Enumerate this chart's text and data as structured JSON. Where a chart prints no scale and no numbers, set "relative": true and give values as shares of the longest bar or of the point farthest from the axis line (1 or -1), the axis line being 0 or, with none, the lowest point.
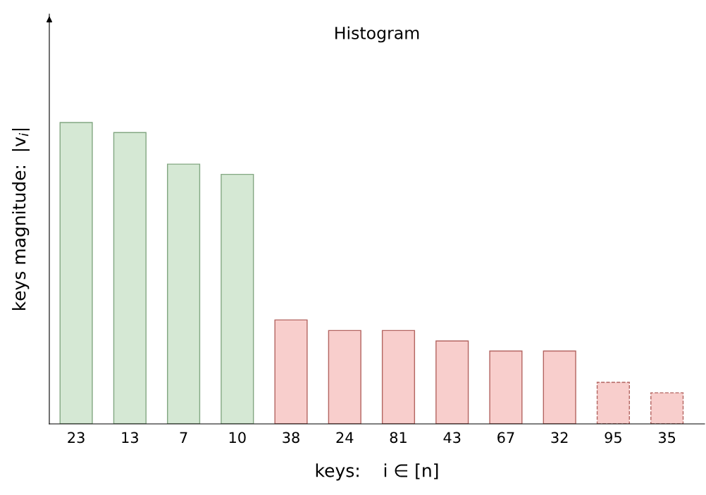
{
  "chart_data": {
    "type": "bar",
    "title": "Histogram",
    "xlabel": "keys:    i ∈ [n]",
    "ylabel": "keys magnitude:  |v$_{i}$|",
    "categories": [
      "23",
      "13",
      "7",
      "10",
      "38",
      "24",
      "81",
      "43",
      "67",
      "32",
      "95",
      "35"
    ],
    "relative": true,
    "legend": false,
    "grid": false,
    "series": [
      {
        "color": "#d5e8d4",
        "line_style": "solid",
        "values": [
          1,
          0.967,
          0.862,
          0.828,
          null,
          null,
          null,
          null,
          null,
          null,
          null,
          null
        ]
      },
      {
        "color": "#f8cecc",
        "line_style": "solid",
        "values": [
          null,
          null,
          null,
          null,
          0.345,
          0.31,
          0.31,
          0.275,
          0.242,
          0.242,
          null,
          null
        ]
      },
      {
        "color": "#f8cecc",
        "line_style": "dashed",
        "values": [
          null,
          null,
          null,
          null,
          null,
          null,
          null,
          null,
          null,
          null,
          0.138,
          0.103
        ]
      }
    ]
  }
}
